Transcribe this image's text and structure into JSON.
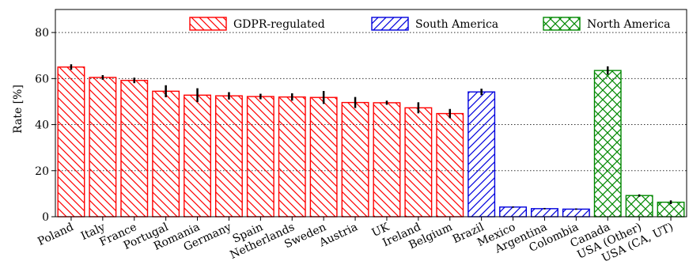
{
  "chart_data": {
    "type": "bar",
    "ylabel": "Rate [%]",
    "xlabel": "",
    "ylim": [
      0,
      90
    ],
    "yticks": [
      0,
      20,
      40,
      60,
      80
    ],
    "grid": "horizontal-dotted",
    "legend_position": "top",
    "categories": [
      "Poland",
      "Italy",
      "France",
      "Portugal",
      "Romania",
      "Germany",
      "Spain",
      "Netherlands",
      "Sweden",
      "Austria",
      "UK",
      "Ireland",
      "Belgium",
      "Brazil",
      "Mexico",
      "Argentina",
      "Colombia",
      "Canada",
      "USA (Other)",
      "USA (CA, UT)"
    ],
    "values": [
      65.0,
      60.5,
      59.2,
      54.5,
      52.8,
      52.5,
      52.2,
      52.0,
      51.8,
      49.6,
      49.5,
      47.3,
      44.8,
      54.2,
      4.2,
      3.5,
      3.3,
      63.5,
      9.2,
      6.3
    ],
    "errors": [
      1.2,
      1.0,
      1.2,
      2.6,
      3.0,
      1.6,
      1.2,
      1.6,
      2.8,
      2.4,
      0.9,
      2.4,
      2.0,
      1.4,
      0.3,
      0.3,
      0.3,
      1.8,
      0.5,
      0.8
    ],
    "groups": [
      0,
      0,
      0,
      0,
      0,
      0,
      0,
      0,
      0,
      0,
      0,
      0,
      0,
      1,
      1,
      1,
      1,
      2,
      2,
      2
    ],
    "series": [
      {
        "name": "GDPR-regulated",
        "color": "#ff0000",
        "hatch": "diagonal-back"
      },
      {
        "name": "South America",
        "color": "#0000dd",
        "hatch": "diagonal-forward"
      },
      {
        "name": "North America",
        "color": "#008800",
        "hatch": "cross"
      }
    ]
  }
}
